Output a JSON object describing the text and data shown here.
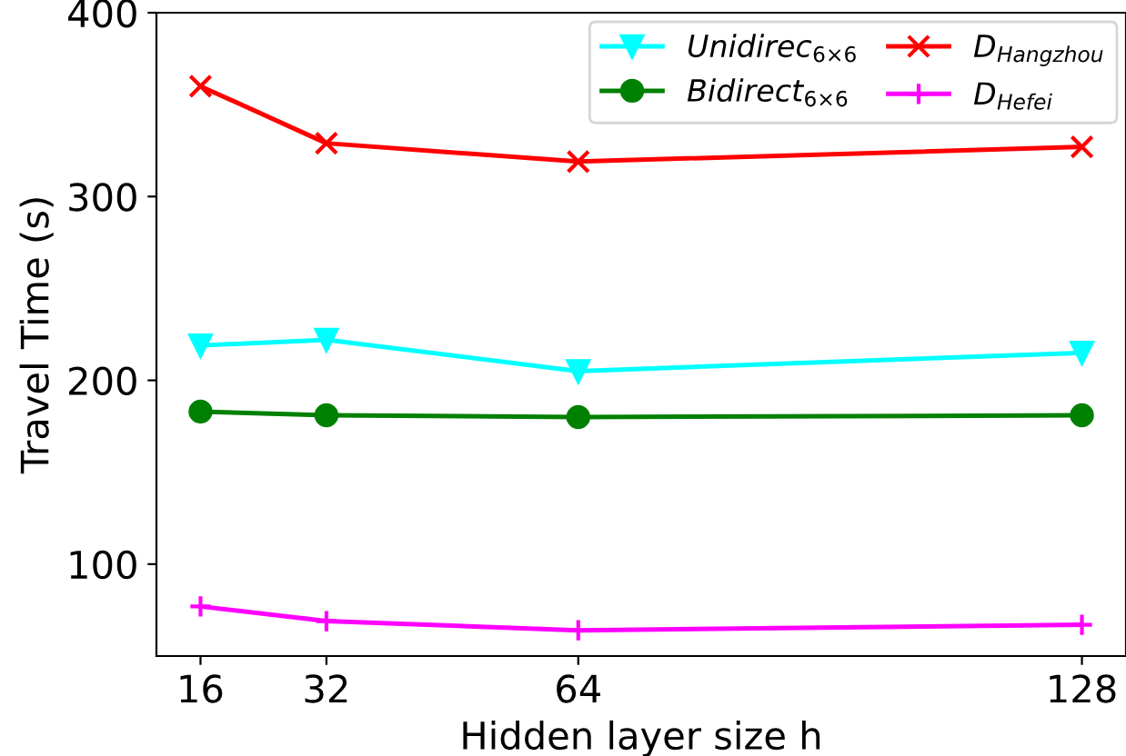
{
  "chart_data": {
    "type": "line",
    "xlabel": "Hidden layer size h",
    "ylabel": "Travel Time (s)",
    "x": [
      16,
      32,
      64,
      128
    ],
    "series": [
      {
        "name": "Unidirec$_{6×6}$",
        "color": "#00ffff",
        "marker": "triangle",
        "values": [
          219,
          222,
          205,
          215
        ]
      },
      {
        "name": "Bidirect$_{6×6}$",
        "color": "#008000",
        "marker": "circle",
        "values": [
          183,
          181,
          180,
          181
        ]
      },
      {
        "name": "D$_{Hangzhou}$",
        "color": "#ff0000",
        "marker": "cross",
        "values": [
          360,
          329,
          319,
          327
        ]
      },
      {
        "name": "D$_{Hefei}$",
        "color": "#ff00ff",
        "marker": "plus",
        "values": [
          77,
          69,
          64,
          67
        ]
      }
    ],
    "xlim": [
      10.4,
      133.6
    ],
    "xticks": [
      16,
      32,
      64,
      128
    ],
    "ylim": [
      50,
      400
    ],
    "yticks": [
      100,
      200,
      300,
      400
    ],
    "grid": false,
    "legend": "top right",
    "line_style": "solid"
  }
}
